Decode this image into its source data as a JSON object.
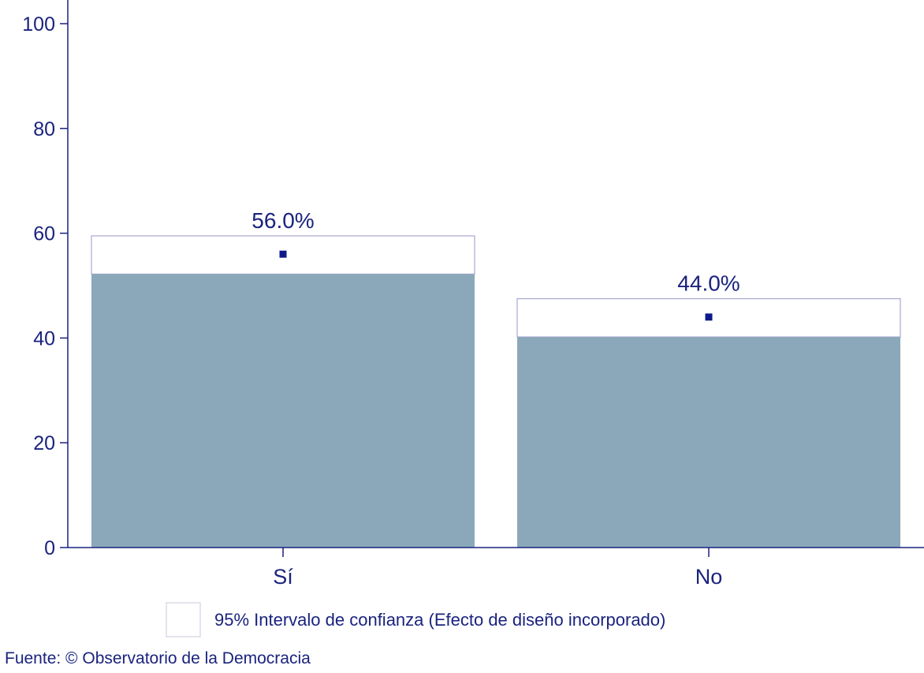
{
  "chart_data": {
    "type": "bar",
    "categories": [
      "Sí",
      "No"
    ],
    "values": [
      56.0,
      44.0
    ],
    "value_labels": [
      "56.0%",
      "44.0%"
    ],
    "ci_lower": [
      52.2,
      40.2
    ],
    "ci_upper": [
      59.5,
      47.5
    ],
    "ylim": [
      0,
      100
    ],
    "yticks": [
      0,
      20,
      40,
      60,
      80,
      100
    ],
    "ytick_labels": [
      "0",
      "20",
      "40",
      "60",
      "80",
      "100"
    ],
    "legend": [
      "95% Intervalo de confianza (Efecto de diseño incorporado)"
    ],
    "legend_position": "bottom",
    "grid": false,
    "source": "Fuente: © Observatorio de la Democracia"
  },
  "colors": {
    "bar": "#8ba8bb",
    "axis": "#1a237e",
    "ci_outline": "#a8a8d0",
    "marker": "#0d1a8a"
  }
}
